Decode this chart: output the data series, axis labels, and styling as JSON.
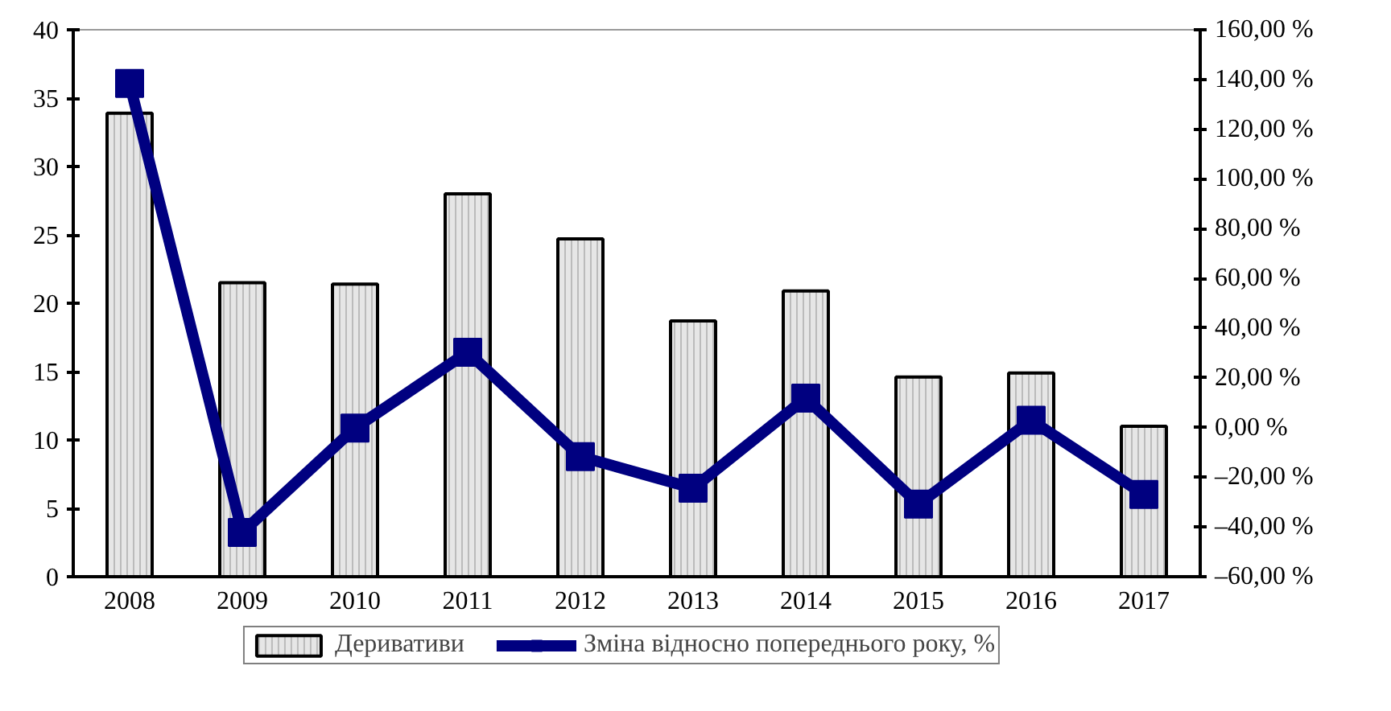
{
  "chart_data": {
    "type": "bar",
    "categories": [
      "2008",
      "2009",
      "2010",
      "2011",
      "2012",
      "2013",
      "2014",
      "2015",
      "2016",
      "2017"
    ],
    "series": [
      {
        "name": "Деривативи",
        "color": "#e6e6e6",
        "values": [
          33.9,
          21.5,
          21.4,
          28.0,
          24.7,
          18.7,
          20.9,
          14.6,
          14.9,
          11.0
        ]
      },
      {
        "name": "Зміна відносно попереднього року, %",
        "type": "line",
        "axis": "y2",
        "color": "#000080",
        "marker": "square",
        "values": [
          138.4,
          -42.2,
          -0.2,
          30.3,
          -11.7,
          -24.4,
          11.8,
          -30.8,
          2.9,
          -26.9
        ]
      }
    ],
    "ylim": [
      0,
      40
    ],
    "yticks": [
      0,
      5,
      10,
      15,
      20,
      25,
      30,
      35,
      40
    ],
    "y2lim": [
      -60,
      160
    ],
    "y2ticks": [
      {
        "value": -60,
        "label": "–60,00 %"
      },
      {
        "value": -40,
        "label": "–40,00 %"
      },
      {
        "value": -20,
        "label": "–20,00 %"
      },
      {
        "value": 0,
        "label": "0,00 %"
      },
      {
        "value": 20,
        "label": "20,00 %"
      },
      {
        "value": 40,
        "label": "40,00 %"
      },
      {
        "value": 60,
        "label": "60,00 %"
      },
      {
        "value": 80,
        "label": "80,00 %"
      },
      {
        "value": 100,
        "label": "100,00 %"
      },
      {
        "value": 120,
        "label": "120,00 %"
      },
      {
        "value": 140,
        "label": "140,00 %"
      },
      {
        "value": 160,
        "label": "160,00 %"
      }
    ],
    "legend": "bottom",
    "grid": false
  }
}
